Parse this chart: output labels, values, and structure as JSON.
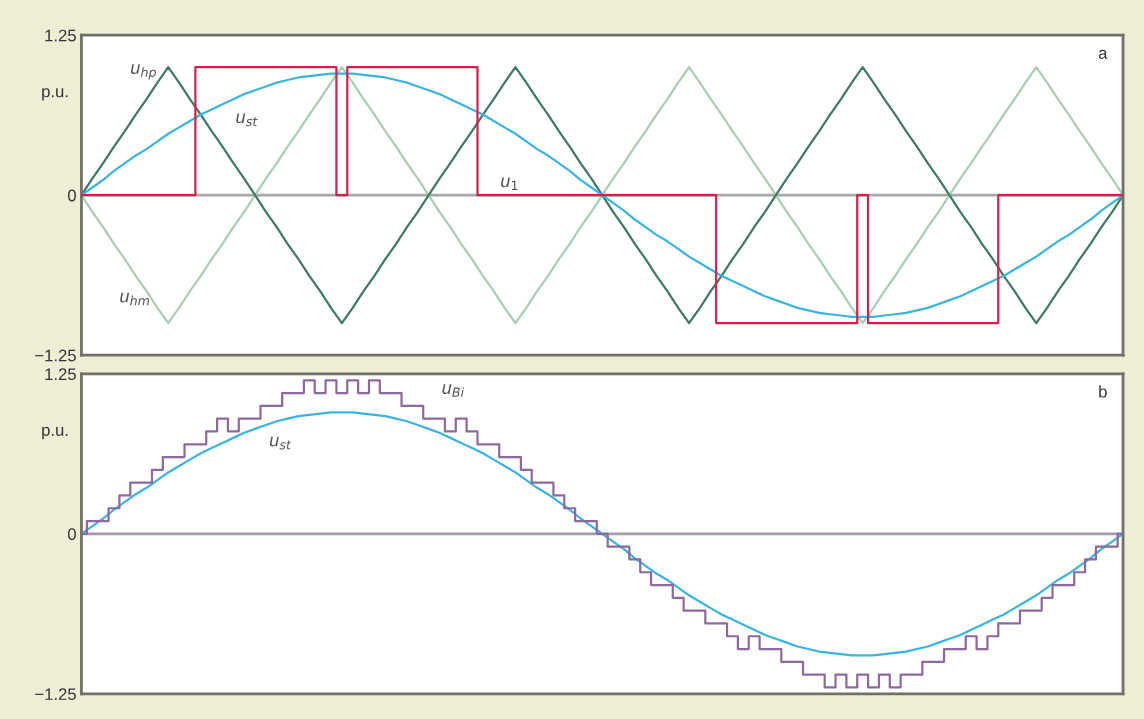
{
  "chart_data": [
    {
      "type": "line",
      "ylabel": "p.u.",
      "annotations": [
        "a"
      ],
      "categories": [
        null,
        null,
        null,
        null,
        null,
        null,
        null,
        null,
        null,
        null,
        null,
        null,
        null,
        null,
        null,
        null,
        null,
        null,
        null,
        null,
        null,
        null,
        null,
        null,
        null,
        null,
        null,
        null,
        null,
        null,
        null,
        null,
        null,
        null,
        null,
        null,
        null,
        null,
        null,
        null,
        null,
        null,
        null,
        null,
        null,
        null,
        null,
        null,
        null,
        null,
        null,
        null,
        null,
        null,
        null,
        null,
        null,
        null,
        null,
        null,
        null,
        null,
        null,
        null,
        null,
        null,
        null,
        null,
        null,
        null,
        null,
        null,
        null,
        null,
        null,
        null,
        null,
        null,
        null,
        null,
        null,
        null,
        null,
        null,
        null,
        null,
        null,
        null,
        null,
        null,
        null,
        null,
        null,
        null,
        null,
        null,
        null
      ],
      "ylim": [
        -1.25,
        1.25
      ],
      "yticks": [
        1.25,
        0,
        {
          "value": -1.25,
          "label": "−1.25"
        }
      ],
      "tick_labels": "y",
      "legend": false,
      "grid": false,
      "ref_lines": [
        {
          "axis": "y",
          "value": 0,
          "color": "#a8a8a8"
        }
      ],
      "series": [
        {
          "name": "u$_{hm}$",
          "color": "#a9cdb5",
          "values": [
            0,
            -0.13,
            -0.25,
            -0.38,
            -0.5,
            -0.63,
            -0.75,
            -0.88,
            -1,
            -0.88,
            -0.75,
            -0.63,
            -0.5,
            -0.38,
            -0.25,
            -0.13,
            0,
            0.13,
            0.25,
            0.38,
            0.5,
            0.63,
            0.75,
            0.88,
            1,
            0.88,
            0.75,
            0.63,
            0.5,
            0.38,
            0.25,
            0.13,
            0,
            -0.13,
            -0.25,
            -0.38,
            -0.5,
            -0.63,
            -0.75,
            -0.88,
            -1,
            -0.88,
            -0.75,
            -0.63,
            -0.5,
            -0.38,
            -0.25,
            -0.13,
            0,
            0.13,
            0.25,
            0.38,
            0.5,
            0.63,
            0.75,
            0.88,
            1,
            0.88,
            0.75,
            0.63,
            0.5,
            0.38,
            0.25,
            0.13,
            0,
            -0.13,
            -0.25,
            -0.38,
            -0.5,
            -0.63,
            -0.75,
            -0.88,
            -1,
            -0.88,
            -0.75,
            -0.63,
            -0.5,
            -0.38,
            -0.25,
            -0.13,
            0,
            0.13,
            0.25,
            0.38,
            0.5,
            0.63,
            0.75,
            0.88,
            1,
            0.88,
            0.75,
            0.63,
            0.5,
            0.38,
            0.25,
            0.13,
            0
          ]
        },
        {
          "name": "u$_{hp}$",
          "color": "#3f7a62",
          "values": [
            0,
            0.13,
            0.25,
            0.38,
            0.5,
            0.63,
            0.75,
            0.88,
            1,
            0.88,
            0.75,
            0.63,
            0.5,
            0.38,
            0.25,
            0.13,
            0,
            -0.13,
            -0.25,
            -0.38,
            -0.5,
            -0.63,
            -0.75,
            -0.88,
            -1,
            -0.88,
            -0.75,
            -0.63,
            -0.5,
            -0.38,
            -0.25,
            -0.13,
            0,
            0.13,
            0.25,
            0.38,
            0.5,
            0.63,
            0.75,
            0.88,
            1,
            0.88,
            0.75,
            0.63,
            0.5,
            0.38,
            0.25,
            0.13,
            0,
            -0.13,
            -0.25,
            -0.38,
            -0.5,
            -0.63,
            -0.75,
            -0.88,
            -1,
            -0.88,
            -0.75,
            -0.63,
            -0.5,
            -0.38,
            -0.25,
            -0.13,
            0,
            0.13,
            0.25,
            0.38,
            0.5,
            0.63,
            0.75,
            0.88,
            1,
            0.88,
            0.75,
            0.63,
            0.5,
            0.38,
            0.25,
            0.13,
            0,
            -0.13,
            -0.25,
            -0.38,
            -0.5,
            -0.63,
            -0.75,
            -0.88,
            -1,
            -0.88,
            -0.75,
            -0.63,
            -0.5,
            -0.38,
            -0.25,
            -0.13,
            0
          ]
        },
        {
          "name": "u$_{st}$",
          "type": "line",
          "color": "#3bb4e0",
          "values": [
            0,
            0.06,
            0.12,
            0.19,
            0.25,
            0.31,
            0.36,
            0.42,
            0.48,
            0.53,
            0.58,
            0.63,
            0.67,
            0.71,
            0.75,
            0.79,
            0.82,
            0.85,
            0.88,
            0.9,
            0.92,
            0.93,
            0.94,
            0.95,
            0.95,
            0.95,
            0.94,
            0.93,
            0.92,
            0.9,
            0.88,
            0.85,
            0.82,
            0.79,
            0.75,
            0.71,
            0.67,
            0.63,
            0.58,
            0.53,
            0.48,
            0.42,
            0.36,
            0.31,
            0.25,
            0.19,
            0.12,
            0.06,
            0,
            -0.06,
            -0.12,
            -0.19,
            -0.25,
            -0.31,
            -0.36,
            -0.42,
            -0.48,
            -0.53,
            -0.58,
            -0.63,
            -0.67,
            -0.71,
            -0.75,
            -0.79,
            -0.82,
            -0.85,
            -0.88,
            -0.9,
            -0.92,
            -0.93,
            -0.94,
            -0.95,
            -0.95,
            -0.95,
            -0.94,
            -0.93,
            -0.92,
            -0.9,
            -0.88,
            -0.85,
            -0.82,
            -0.79,
            -0.75,
            -0.71,
            -0.67,
            -0.63,
            -0.58,
            -0.53,
            -0.48,
            -0.42,
            -0.36,
            -0.31,
            -0.25,
            -0.19,
            -0.12,
            -0.06,
            0
          ]
        },
        {
          "name": "u$_{1}$",
          "type": "step",
          "color": "#d4204a",
          "values": [
            0,
            0,
            0,
            0,
            0,
            0,
            0,
            0,
            0,
            0,
            0,
            1,
            1,
            1,
            1,
            1,
            1,
            1,
            1,
            1,
            1,
            1,
            1,
            1,
            0,
            1,
            1,
            1,
            1,
            1,
            1,
            1,
            1,
            1,
            1,
            1,
            1,
            0,
            0,
            0,
            0,
            0,
            0,
            0,
            0,
            0,
            0,
            0,
            0,
            0,
            0,
            0,
            0,
            0,
            0,
            0,
            0,
            0,
            0,
            -1,
            -1,
            -1,
            -1,
            -1,
            -1,
            -1,
            -1,
            -1,
            -1,
            -1,
            -1,
            -1,
            0,
            -1,
            -1,
            -1,
            -1,
            -1,
            -1,
            -1,
            -1,
            -1,
            -1,
            -1,
            -1,
            0,
            0,
            0,
            0,
            0,
            0,
            0,
            0,
            0,
            0,
            0,
            0
          ]
        }
      ]
    },
    {
      "type": "line",
      "ylabel": "p.u.",
      "annotations": [
        "b"
      ],
      "categories": [
        null,
        null,
        null,
        null,
        null,
        null,
        null,
        null,
        null,
        null,
        null,
        null,
        null,
        null,
        null,
        null,
        null,
        null,
        null,
        null,
        null,
        null,
        null,
        null,
        null,
        null,
        null,
        null,
        null,
        null,
        null,
        null,
        null,
        null,
        null,
        null,
        null,
        null,
        null,
        null,
        null,
        null,
        null,
        null,
        null,
        null,
        null,
        null,
        null,
        null,
        null,
        null,
        null,
        null,
        null,
        null,
        null,
        null,
        null,
        null,
        null,
        null,
        null,
        null,
        null,
        null,
        null,
        null,
        null,
        null,
        null,
        null,
        null,
        null,
        null,
        null,
        null,
        null,
        null,
        null,
        null,
        null,
        null,
        null,
        null,
        null,
        null,
        null,
        null,
        null,
        null,
        null,
        null,
        null,
        null,
        null,
        null
      ],
      "ylim": [
        -1.25,
        1.25
      ],
      "yticks": [
        1.25,
        0,
        {
          "value": -1.25,
          "label": "−1.25"
        }
      ],
      "tick_labels": "y",
      "legend": false,
      "grid": false,
      "ref_lines": [
        {
          "axis": "y",
          "value": 0,
          "color": "#a89ab0"
        }
      ],
      "series": [
        {
          "name": "u$_{Bi}$",
          "type": "step",
          "color": "#8c6aa0",
          "values": [
            0,
            0.1,
            0.1,
            0.2,
            0.3,
            0.4,
            0.4,
            0.5,
            0.6,
            0.6,
            0.7,
            0.7,
            0.8,
            0.9,
            0.8,
            0.9,
            0.9,
            1,
            1,
            1.1,
            1.1,
            1.2,
            1.1,
            1.2,
            1.1,
            1.2,
            1.1,
            1.2,
            1.1,
            1.1,
            1,
            1,
            0.9,
            0.9,
            0.8,
            0.9,
            0.8,
            0.7,
            0.7,
            0.6,
            0.6,
            0.5,
            0.4,
            0.4,
            0.3,
            0.2,
            0.1,
            0.1,
            0,
            -0.1,
            -0.1,
            -0.2,
            -0.3,
            -0.4,
            -0.4,
            -0.5,
            -0.6,
            -0.6,
            -0.7,
            -0.7,
            -0.8,
            -0.9,
            -0.8,
            -0.9,
            -0.9,
            -1,
            -1,
            -1.1,
            -1.1,
            -1.2,
            -1.1,
            -1.2,
            -1.1,
            -1.2,
            -1.1,
            -1.2,
            -1.1,
            -1.1,
            -1,
            -1,
            -0.9,
            -0.9,
            -0.8,
            -0.9,
            -0.8,
            -0.7,
            -0.7,
            -0.6,
            -0.6,
            -0.5,
            -0.4,
            -0.4,
            -0.3,
            -0.2,
            -0.1,
            -0.1,
            0
          ]
        },
        {
          "name": "u$_{st}$",
          "type": "line",
          "color": "#3bb4e0",
          "values": [
            0,
            0.06,
            0.12,
            0.19,
            0.25,
            0.31,
            0.36,
            0.42,
            0.48,
            0.53,
            0.58,
            0.63,
            0.67,
            0.71,
            0.75,
            0.79,
            0.82,
            0.85,
            0.88,
            0.9,
            0.92,
            0.93,
            0.94,
            0.95,
            0.95,
            0.95,
            0.94,
            0.93,
            0.92,
            0.9,
            0.88,
            0.85,
            0.82,
            0.79,
            0.75,
            0.71,
            0.67,
            0.63,
            0.58,
            0.53,
            0.48,
            0.42,
            0.36,
            0.31,
            0.25,
            0.19,
            0.12,
            0.06,
            0,
            -0.06,
            -0.12,
            -0.19,
            -0.25,
            -0.31,
            -0.36,
            -0.42,
            -0.48,
            -0.53,
            -0.58,
            -0.63,
            -0.67,
            -0.71,
            -0.75,
            -0.79,
            -0.82,
            -0.85,
            -0.88,
            -0.9,
            -0.92,
            -0.93,
            -0.94,
            -0.95,
            -0.95,
            -0.95,
            -0.94,
            -0.93,
            -0.92,
            -0.9,
            -0.88,
            -0.85,
            -0.82,
            -0.79,
            -0.75,
            -0.71,
            -0.67,
            -0.63,
            -0.58,
            -0.53,
            -0.48,
            -0.42,
            -0.36,
            -0.31,
            -0.25,
            -0.19,
            -0.12,
            -0.06,
            0
          ]
        }
      ]
    }
  ]
}
